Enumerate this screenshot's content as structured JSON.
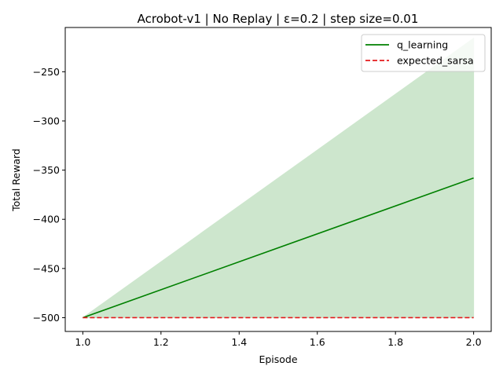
{
  "chart_data": {
    "type": "line",
    "title": "Acrobot-v1 | No Replay | ε=0.2 | step size=0.01",
    "xlabel": "Episode",
    "ylabel": "Total Reward",
    "xlim": [
      0.955,
      2.045
    ],
    "ylim": [
      -514,
      -205
    ],
    "xticks": [
      1.0,
      1.2,
      1.4,
      1.6,
      1.8,
      2.0
    ],
    "xtick_labels": [
      "1.0",
      "1.2",
      "1.4",
      "1.6",
      "1.8",
      "2.0"
    ],
    "yticks": [
      -500,
      -450,
      -400,
      -350,
      -300,
      -250
    ],
    "ytick_labels": [
      "−500",
      "−450",
      "−400",
      "−350",
      "−300",
      "−250"
    ],
    "grid": false,
    "legend_position": "top-right",
    "x": [
      1.0,
      2.0
    ],
    "series": [
      {
        "name": "q_learning",
        "values": [
          -500,
          -358
        ],
        "band_lower": [
          -500,
          -500
        ],
        "band_upper": [
          -500,
          -216
        ],
        "color": "#008000",
        "band_color": "#cde6cd",
        "dash": "solid"
      },
      {
        "name": "expected_sarsa",
        "values": [
          -500,
          -500
        ],
        "color": "#e41a1c",
        "dash": "dashed"
      }
    ]
  }
}
